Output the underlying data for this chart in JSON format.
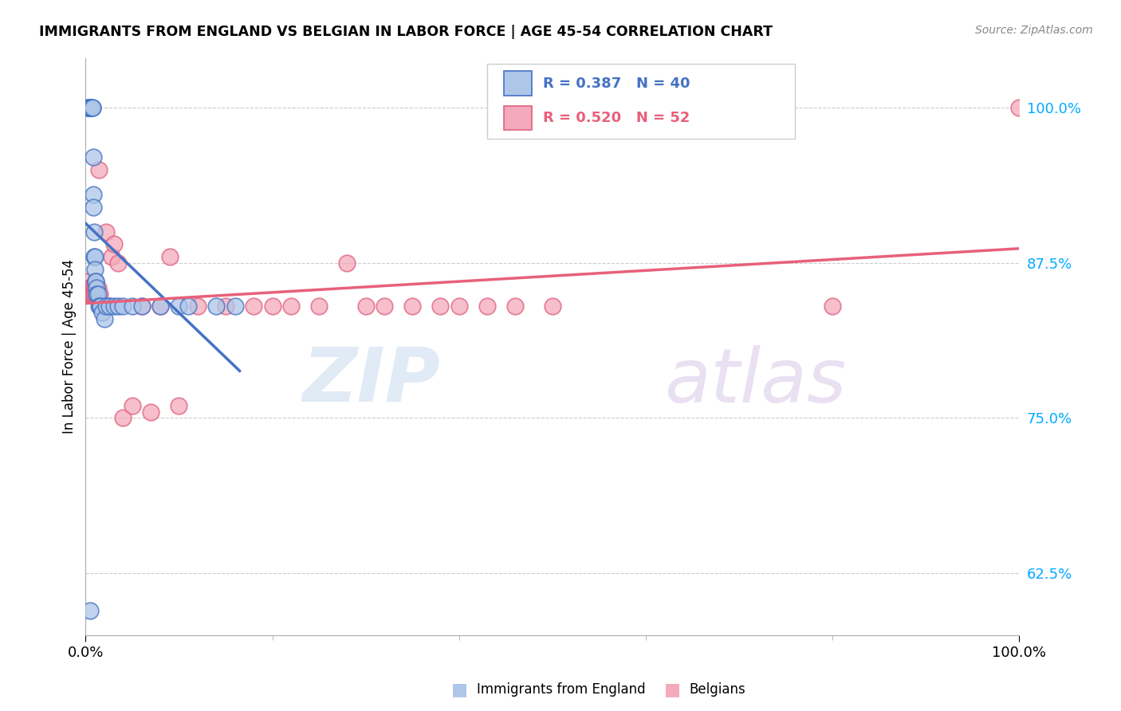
{
  "title": "IMMIGRANTS FROM ENGLAND VS BELGIAN IN LABOR FORCE | AGE 45-54 CORRELATION CHART",
  "source": "Source: ZipAtlas.com",
  "ylabel": "In Labor Force | Age 45-54",
  "xlim": [
    0.0,
    1.0
  ],
  "ylim": [
    0.575,
    1.04
  ],
  "yticks": [
    0.625,
    0.75,
    0.875,
    1.0
  ],
  "ytick_labels": [
    "62.5%",
    "75.0%",
    "87.5%",
    "100.0%"
  ],
  "xtick_labels": [
    "0.0%",
    "100.0%"
  ],
  "england_color": "#AEC6E8",
  "england_edge_color": "#4472C4",
  "belgian_color": "#F4AABA",
  "belgian_edge_color": "#E06080",
  "trend_england_color": "#4472C4",
  "trend_belgian_color": "#E8607A",
  "eng_x": [
    0.002,
    0.003,
    0.004,
    0.004,
    0.005,
    0.005,
    0.006,
    0.006,
    0.007,
    0.007,
    0.008,
    0.008,
    0.008,
    0.009,
    0.009,
    0.01,
    0.01,
    0.011,
    0.011,
    0.012,
    0.012,
    0.013,
    0.014,
    0.015,
    0.016,
    0.018,
    0.02,
    0.022,
    0.025,
    0.03,
    0.035,
    0.04,
    0.05,
    0.06,
    0.08,
    0.1,
    0.11,
    0.14,
    0.16,
    0.005
  ],
  "eng_y": [
    1.0,
    1.0,
    1.0,
    1.0,
    1.0,
    1.0,
    1.0,
    1.0,
    1.0,
    1.0,
    0.96,
    0.93,
    0.92,
    0.9,
    0.88,
    0.88,
    0.87,
    0.86,
    0.86,
    0.855,
    0.85,
    0.85,
    0.84,
    0.84,
    0.84,
    0.835,
    0.83,
    0.84,
    0.84,
    0.84,
    0.84,
    0.84,
    0.84,
    0.84,
    0.84,
    0.84,
    0.84,
    0.84,
    0.84,
    0.595
  ],
  "bel_x": [
    0.003,
    0.004,
    0.004,
    0.005,
    0.005,
    0.006,
    0.006,
    0.007,
    0.007,
    0.008,
    0.008,
    0.009,
    0.009,
    0.01,
    0.01,
    0.011,
    0.012,
    0.013,
    0.014,
    0.015,
    0.016,
    0.018,
    0.02,
    0.022,
    0.025,
    0.028,
    0.03,
    0.035,
    0.04,
    0.05,
    0.06,
    0.07,
    0.08,
    0.09,
    0.1,
    0.12,
    0.15,
    0.18,
    0.2,
    0.22,
    0.25,
    0.28,
    0.3,
    0.32,
    0.35,
    0.38,
    0.4,
    0.43,
    0.46,
    0.5,
    0.8,
    1.0
  ],
  "bel_y": [
    0.86,
    0.855,
    0.85,
    0.855,
    0.85,
    0.855,
    0.85,
    0.855,
    0.85,
    0.855,
    0.85,
    0.855,
    0.85,
    0.855,
    0.85,
    0.855,
    0.85,
    0.855,
    0.95,
    0.85,
    0.84,
    0.84,
    0.84,
    0.9,
    0.84,
    0.88,
    0.89,
    0.875,
    0.75,
    0.76,
    0.84,
    0.755,
    0.84,
    0.88,
    0.76,
    0.84,
    0.84,
    0.84,
    0.84,
    0.84,
    0.84,
    0.875,
    0.84,
    0.84,
    0.84,
    0.84,
    0.84,
    0.84,
    0.84,
    0.84,
    0.84,
    1.0
  ]
}
